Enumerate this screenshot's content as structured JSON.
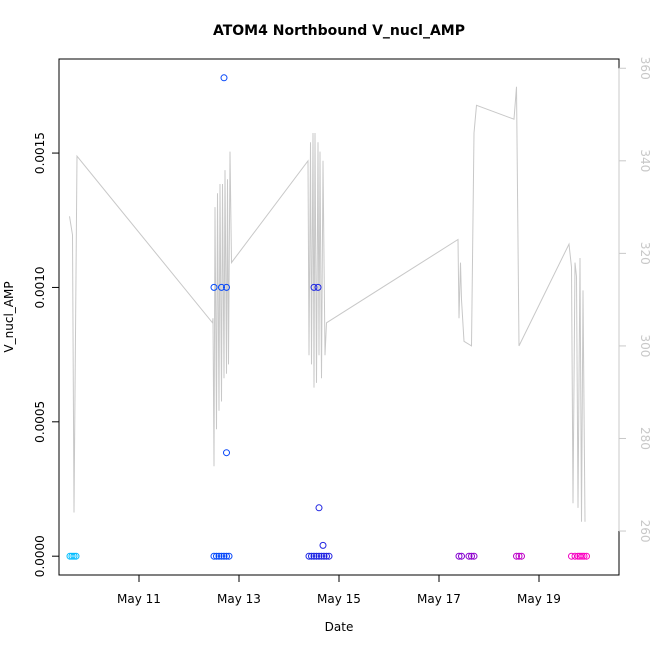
{
  "chart_data": {
    "type": "scatter",
    "title": "ATOM4 Northbound V_nucl_AMP",
    "xlabel": "Date",
    "ylabel": "V_nucl_AMP",
    "x_ticks": [
      "May 11",
      "May 13",
      "May 15",
      "May 17",
      "May 19"
    ],
    "x_tick_days": [
      11,
      13,
      15,
      17,
      19
    ],
    "xlim_days": [
      9.4,
      20.6
    ],
    "ylim": [
      -7e-05,
      0.00185
    ],
    "y_ticks": [
      "0.0000",
      "0.0005",
      "0.0010",
      "0.0015"
    ],
    "y_tick_values": [
      0,
      0.0005,
      0.001,
      0.0015
    ],
    "y2lim": [
      250.5,
      362
    ],
    "y2_ticks": [
      "260",
      "280",
      "300",
      "320",
      "340",
      "360"
    ],
    "y2_tick_values": [
      260,
      280,
      300,
      320,
      340,
      360
    ],
    "line_color": "#c8c8c8",
    "series": [
      {
        "type": "points",
        "color_gradient": [
          "#00bfff",
          "#0050ff",
          "#2020e0",
          "#8000d0",
          "#ff00c0"
        ],
        "points": [
          {
            "x": 9.62,
            "y": 0
          },
          {
            "x": 9.66,
            "y": 0
          },
          {
            "x": 9.7,
            "y": 0
          },
          {
            "x": 9.74,
            "y": 0
          },
          {
            "x": 12.5,
            "y": 0.001
          },
          {
            "x": 12.5,
            "y": 0
          },
          {
            "x": 12.55,
            "y": 0
          },
          {
            "x": 12.6,
            "y": 0
          },
          {
            "x": 12.65,
            "y": 0.001
          },
          {
            "x": 12.65,
            "y": 0
          },
          {
            "x": 12.7,
            "y": 0.00178
          },
          {
            "x": 12.7,
            "y": 0
          },
          {
            "x": 12.75,
            "y": 0.001
          },
          {
            "x": 12.75,
            "y": 0.000385
          },
          {
            "x": 12.75,
            "y": 0
          },
          {
            "x": 12.8,
            "y": 0
          },
          {
            "x": 14.4,
            "y": 0
          },
          {
            "x": 14.45,
            "y": 0
          },
          {
            "x": 14.5,
            "y": 0.001
          },
          {
            "x": 14.5,
            "y": 0
          },
          {
            "x": 14.55,
            "y": 0
          },
          {
            "x": 14.58,
            "y": 0.001
          },
          {
            "x": 14.6,
            "y": 0.00018
          },
          {
            "x": 14.6,
            "y": 0
          },
          {
            "x": 14.65,
            "y": 0
          },
          {
            "x": 14.68,
            "y": 4e-05
          },
          {
            "x": 14.7,
            "y": 0
          },
          {
            "x": 14.75,
            "y": 0
          },
          {
            "x": 14.8,
            "y": 0
          },
          {
            "x": 17.4,
            "y": 0
          },
          {
            "x": 17.45,
            "y": 0
          },
          {
            "x": 17.6,
            "y": 0
          },
          {
            "x": 17.65,
            "y": 0
          },
          {
            "x": 17.7,
            "y": 0
          },
          {
            "x": 18.55,
            "y": 0
          },
          {
            "x": 18.6,
            "y": 0
          },
          {
            "x": 18.65,
            "y": 0
          },
          {
            "x": 19.65,
            "y": 0
          },
          {
            "x": 19.72,
            "y": 0
          },
          {
            "x": 19.78,
            "y": 0
          },
          {
            "x": 19.82,
            "y": 0
          },
          {
            "x": 19.86,
            "y": 0
          },
          {
            "x": 19.9,
            "y": 0
          },
          {
            "x": 19.95,
            "y": 0
          }
        ]
      },
      {
        "type": "line",
        "axis": "right",
        "color": "#c8c8c8",
        "points": [
          [
            9.61,
            328
          ],
          [
            9.67,
            324
          ],
          [
            9.7,
            264
          ],
          [
            9.76,
            341
          ],
          [
            12.47,
            305
          ],
          [
            12.48,
            306
          ],
          [
            12.5,
            274
          ],
          [
            12.52,
            330
          ],
          [
            12.55,
            282
          ],
          [
            12.57,
            333
          ],
          [
            12.6,
            286
          ],
          [
            12.62,
            335
          ],
          [
            12.65,
            288
          ],
          [
            12.67,
            335
          ],
          [
            12.7,
            293
          ],
          [
            12.72,
            338
          ],
          [
            12.75,
            294
          ],
          [
            12.77,
            336
          ],
          [
            12.79,
            296
          ],
          [
            12.82,
            342
          ],
          [
            12.85,
            318
          ],
          [
            14.38,
            340
          ],
          [
            14.4,
            298
          ],
          [
            14.43,
            344
          ],
          [
            14.45,
            296
          ],
          [
            14.48,
            346
          ],
          [
            14.5,
            291
          ],
          [
            14.52,
            346
          ],
          [
            14.55,
            292
          ],
          [
            14.58,
            344
          ],
          [
            14.6,
            298
          ],
          [
            14.62,
            342
          ],
          [
            14.65,
            293
          ],
          [
            14.68,
            340
          ],
          [
            14.72,
            298
          ],
          [
            14.75,
            305
          ],
          [
            17.38,
            323
          ],
          [
            17.4,
            306
          ],
          [
            17.43,
            318
          ],
          [
            17.45,
            310
          ],
          [
            17.5,
            301
          ],
          [
            17.65,
            300
          ],
          [
            17.7,
            346
          ],
          [
            17.75,
            352
          ],
          [
            18.5,
            349
          ],
          [
            18.55,
            356
          ],
          [
            18.6,
            300
          ],
          [
            19.6,
            322
          ],
          [
            19.65,
            317
          ],
          [
            19.68,
            266
          ],
          [
            19.72,
            318
          ],
          [
            19.75,
            315
          ],
          [
            19.78,
            265
          ],
          [
            19.82,
            319
          ],
          [
            19.85,
            262
          ],
          [
            19.88,
            312
          ],
          [
            19.92,
            262
          ]
        ]
      }
    ]
  }
}
